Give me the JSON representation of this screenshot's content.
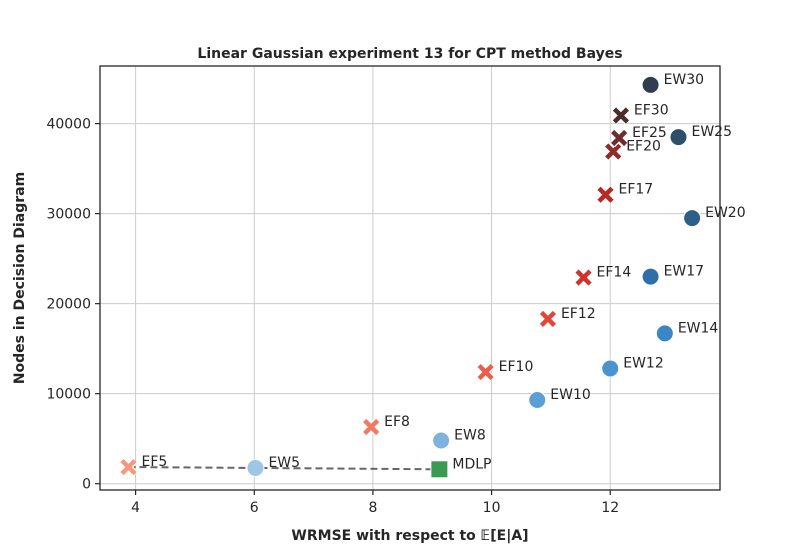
{
  "chart_data": {
    "type": "scatter",
    "title": "Linear Gaussian experiment 13 for CPT method Bayes",
    "xlabel": "WRMSE with respect to 𝔼[E|A]",
    "ylabel": "Nodes in Decision Diagram",
    "xlim": [
      3.4,
      13.85
    ],
    "ylim": [
      -700,
      46400
    ],
    "xticks": [
      4,
      6,
      8,
      10,
      12
    ],
    "yticks": [
      0,
      10000,
      20000,
      30000,
      40000
    ],
    "grid": true,
    "series": [
      {
        "marker": "x",
        "points": [
          {
            "label": "EF5",
            "x": 3.88,
            "y": 1850,
            "color": "#f39a7e"
          },
          {
            "label": "EF8",
            "x": 7.97,
            "y": 6300,
            "color": "#ee7c63"
          },
          {
            "label": "EF10",
            "x": 9.9,
            "y": 12400,
            "color": "#ea5f4a"
          },
          {
            "label": "EF12",
            "x": 10.95,
            "y": 18300,
            "color": "#e44536"
          },
          {
            "label": "EF14",
            "x": 11.55,
            "y": 22900,
            "color": "#d73027"
          },
          {
            "label": "EF17",
            "x": 11.92,
            "y": 32100,
            "color": "#b52a26"
          },
          {
            "label": "EF20",
            "x": 12.05,
            "y": 36900,
            "color": "#8e2c2a"
          },
          {
            "label": "EF25",
            "x": 12.15,
            "y": 38400,
            "color": "#6e2c2b"
          },
          {
            "label": "EF30",
            "x": 12.18,
            "y": 40900,
            "color": "#4e2a2a"
          }
        ]
      },
      {
        "marker": "o",
        "points": [
          {
            "label": "EW5",
            "x": 6.02,
            "y": 1750,
            "color": "#9ec7e6"
          },
          {
            "label": "EW8",
            "x": 9.15,
            "y": 4800,
            "color": "#7fb2dc"
          },
          {
            "label": "EW10",
            "x": 10.77,
            "y": 9300,
            "color": "#5ca0d3"
          },
          {
            "label": "EW12",
            "x": 12.0,
            "y": 12800,
            "color": "#4a94cd"
          },
          {
            "label": "EW14",
            "x": 12.92,
            "y": 16700,
            "color": "#3b86c4"
          },
          {
            "label": "EW17",
            "x": 12.68,
            "y": 23000,
            "color": "#2f6ea8"
          },
          {
            "label": "EW20",
            "x": 13.38,
            "y": 29500,
            "color": "#2e5f88"
          },
          {
            "label": "EW25",
            "x": 13.15,
            "y": 38500,
            "color": "#2d4f6c"
          },
          {
            "label": "EW30",
            "x": 12.68,
            "y": 44300,
            "color": "#2f3d4f"
          }
        ]
      },
      {
        "marker": "s",
        "points": [
          {
            "label": "MDLP",
            "x": 9.12,
            "y": 1600,
            "color": "#3a9a52"
          }
        ]
      }
    ],
    "trend_line": [
      {
        "x": 3.88,
        "y": 1850
      },
      {
        "x": 6.02,
        "y": 1750
      },
      {
        "x": 9.12,
        "y": 1600
      }
    ]
  }
}
